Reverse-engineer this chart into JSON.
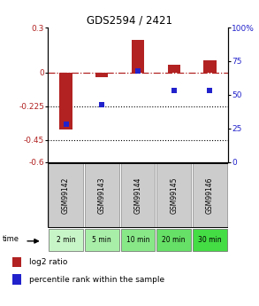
{
  "title": "GDS2594 / 2421",
  "samples": [
    "GSM99142",
    "GSM99143",
    "GSM99144",
    "GSM99145",
    "GSM99146"
  ],
  "time_labels": [
    "2 min",
    "5 min",
    "10 min",
    "20 min",
    "30 min"
  ],
  "log2_ratio": [
    -0.38,
    -0.03,
    0.22,
    0.05,
    0.08
  ],
  "percentile_rank": [
    28,
    43,
    68,
    53,
    53
  ],
  "bar_color": "#b22222",
  "dot_color": "#2222cc",
  "ylim_left": [
    -0.6,
    0.3
  ],
  "ylim_right": [
    0,
    100
  ],
  "yticks_left": [
    0.3,
    0.0,
    -0.225,
    -0.45,
    -0.6
  ],
  "ytick_labels_left": [
    "0.3",
    "0",
    "-0.225",
    "-0.45",
    "-0.6"
  ],
  "yticks_right": [
    100,
    75,
    50,
    25,
    0
  ],
  "ytick_labels_right": [
    "100%",
    "75",
    "50",
    "25",
    "0"
  ],
  "hlines_dash": [
    0.0
  ],
  "hlines_dot": [
    -0.225,
    -0.45
  ],
  "background_color": "#ffffff",
  "plot_bg": "#ffffff",
  "sample_label_bg": "#cccccc",
  "time_label_bg_light": "#b8f0b8",
  "time_label_bg_dark": "#44cc44",
  "bar_width": 0.35,
  "dot_size": 18
}
